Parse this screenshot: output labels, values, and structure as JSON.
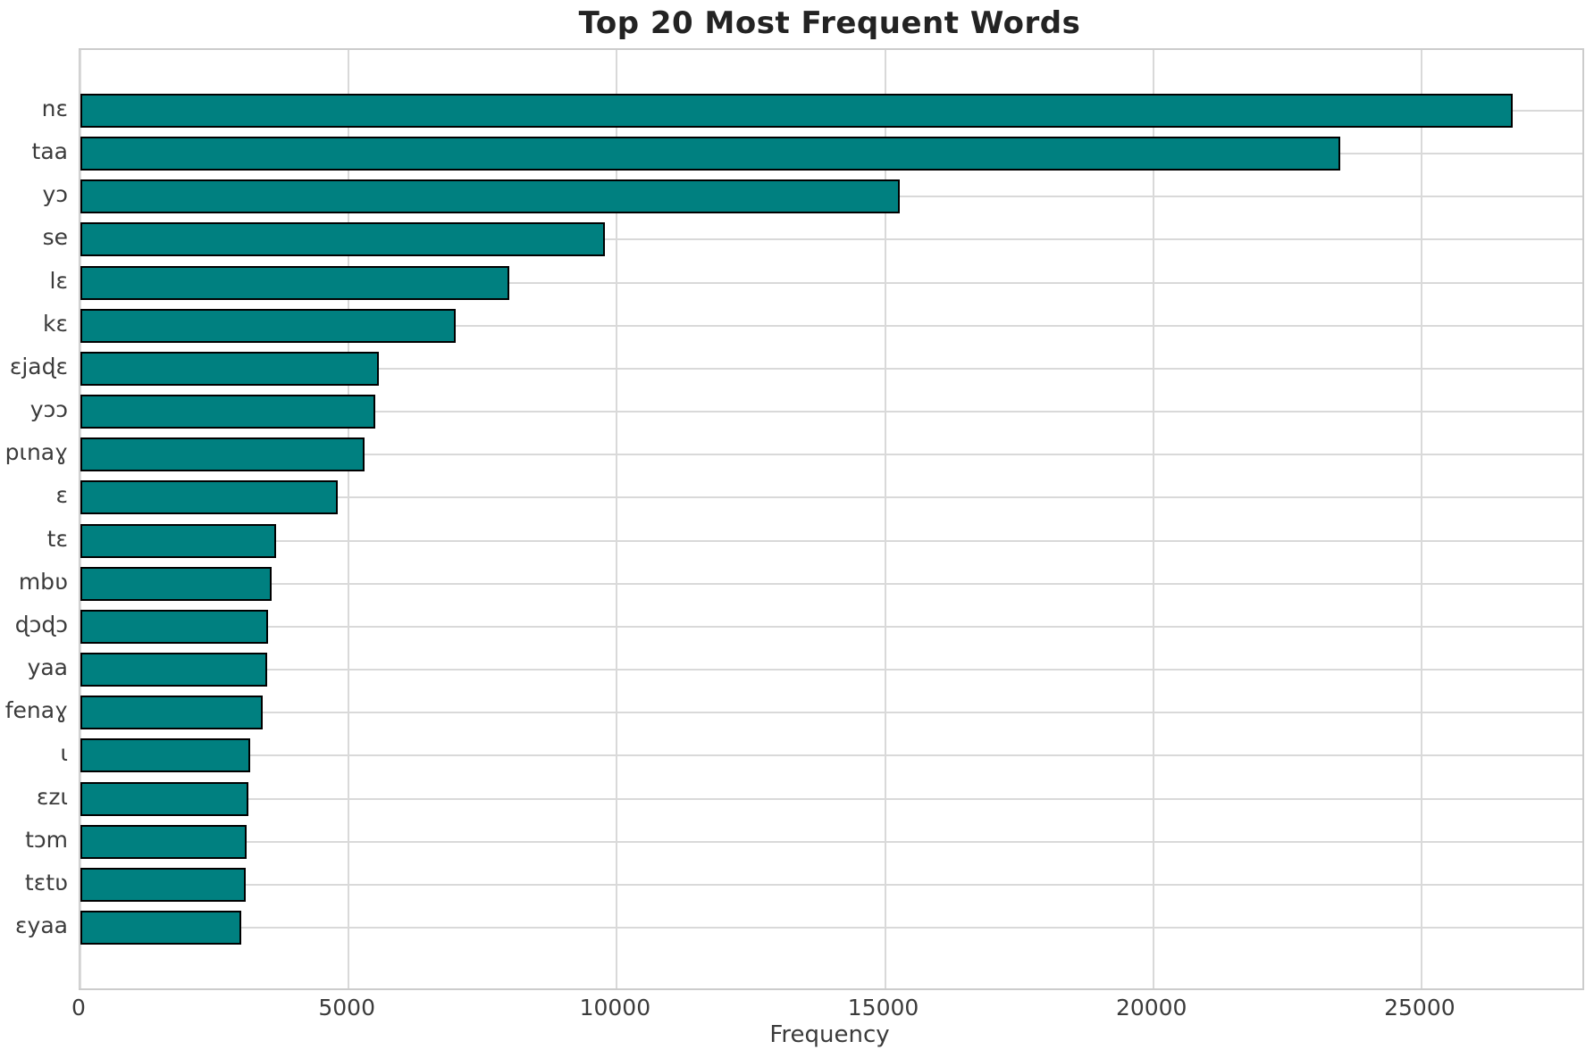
{
  "figure": {
    "background": "#ffffff"
  },
  "chart_data": {
    "type": "bar",
    "orientation": "horizontal",
    "title": "Top 20 Most Frequent Words",
    "xlabel": "Frequency",
    "ylabel": "",
    "categories": [
      "nɛ",
      "taa",
      "yɔ",
      "se",
      "lɛ",
      "kɛ",
      "ɛjaɖɛ",
      "yɔɔ",
      "pɩnaɣ",
      "ɛ",
      "tɛ",
      "mbʋ",
      "ɖɔɖɔ",
      "yaa",
      "fenaɣ",
      "ɩ",
      "ɛzɩ",
      "tɔm",
      "tɛtʋ",
      "ɛyaa"
    ],
    "values": [
      26700,
      23480,
      15280,
      9780,
      8000,
      7000,
      5570,
      5500,
      5300,
      4800,
      3650,
      3570,
      3500,
      3480,
      3400,
      3170,
      3130,
      3100,
      3080,
      3000
    ],
    "xticks": [
      0,
      5000,
      10000,
      15000,
      20000,
      25000
    ],
    "xtick_labels": [
      "0",
      "5000",
      "10000",
      "15000",
      "20000",
      "25000"
    ],
    "xlim": [
      0,
      28000
    ],
    "grid": true,
    "legend_position": "none",
    "bar_color": "#008080",
    "bar_edge_color": "#000000",
    "grid_color": "#d9d9d9"
  }
}
